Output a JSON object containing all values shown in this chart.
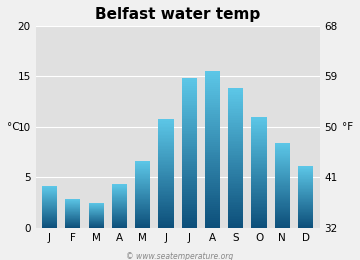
{
  "title": "Belfast water temp",
  "months": [
    "J",
    "F",
    "M",
    "A",
    "M",
    "J",
    "J",
    "A",
    "S",
    "O",
    "N",
    "D"
  ],
  "values_c": [
    4.1,
    2.9,
    2.5,
    4.3,
    6.6,
    10.8,
    14.8,
    15.5,
    13.8,
    11.0,
    8.4,
    6.1
  ],
  "ylabel_left": "°C",
  "ylabel_right": "°F",
  "ylim_c": [
    0,
    20
  ],
  "yticks_c": [
    0,
    5,
    10,
    15,
    20
  ],
  "yticks_f": [
    32,
    41,
    50,
    59,
    68
  ],
  "bg_color": "#e0e0e0",
  "fig_color": "#f0f0f0",
  "bar_color_bottom": "#0d4f7a",
  "bar_color_top": "#5dc8e8",
  "title_fontsize": 11,
  "axis_fontsize": 7.5,
  "watermark": "© www.seatemperature.org"
}
